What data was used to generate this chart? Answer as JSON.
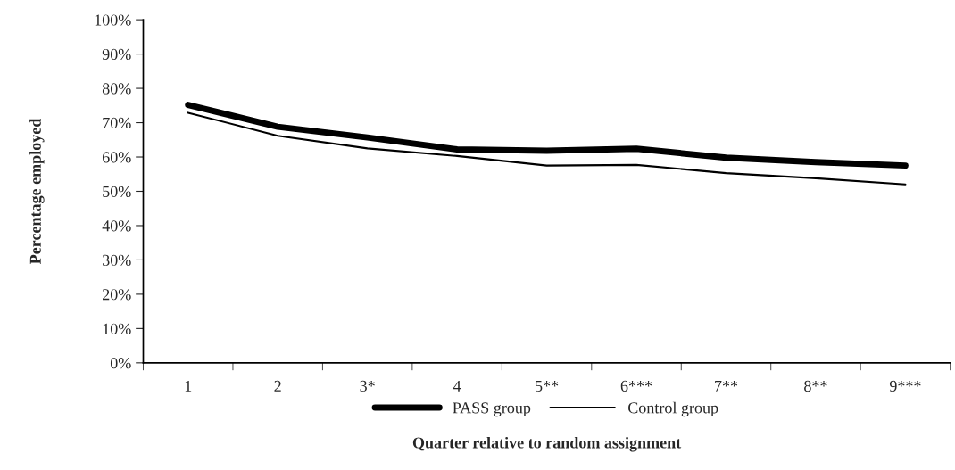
{
  "chart_data": {
    "type": "line",
    "xlabel": "Quarter relative to random assignment",
    "ylabel": "Percentage employed",
    "categories": [
      "1",
      "2",
      "3*",
      "4",
      "5**",
      "6***",
      "7**",
      "8**",
      "9***"
    ],
    "series": [
      {
        "name": "PASS group",
        "color": "#000000",
        "values": [
          75.2,
          68.8,
          65.7,
          62.2,
          61.8,
          62.4,
          59.8,
          58.5,
          57.5
        ]
      },
      {
        "name": "Control group",
        "color": "#000000",
        "values": [
          72.9,
          66.2,
          62.5,
          60.3,
          57.5,
          57.7,
          55.3,
          53.8,
          52.0
        ]
      }
    ],
    "ylim": [
      0,
      100
    ],
    "yticks": [
      {
        "value": 0,
        "label": "0%"
      },
      {
        "value": 10,
        "label": "10%"
      },
      {
        "value": 20,
        "label": "20%"
      },
      {
        "value": 30,
        "label": "30%"
      },
      {
        "value": 40,
        "label": "40%"
      },
      {
        "value": 50,
        "label": "50%"
      },
      {
        "value": 60,
        "label": "60%"
      },
      {
        "value": 70,
        "label": "70%"
      },
      {
        "value": 80,
        "label": "80%"
      },
      {
        "value": 90,
        "label": "90%"
      },
      {
        "value": 100,
        "label": "100%"
      }
    ],
    "grid": false,
    "legend": "bottom",
    "marker": "none",
    "line_style": "solid"
  }
}
